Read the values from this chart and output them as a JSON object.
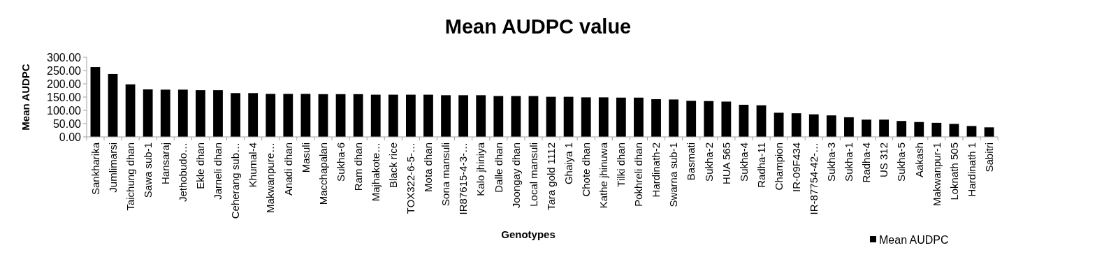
{
  "chart_data": {
    "type": "bar",
    "title": "Mean AUDPC value",
    "xlabel": "Genotypes",
    "ylabel": "Mean AUDPC",
    "categories": [
      "Sankharika",
      "Jumlimarsi",
      "Taichung dhan",
      "Sawa sub-1",
      "Hansaraj",
      "Jethobudo…",
      "Ekle dhan",
      "Jarneli dhan",
      "Ceherang sub…",
      "Khumal-4",
      "Makwanpure…",
      "Anadi dhan",
      "Masuli",
      "Macchapalan",
      "Sukha-6",
      "Ram dhan",
      "Majhakote…",
      "Black rice",
      "TOX322-6-5-…",
      "Mota dhan",
      "Sona mansuli",
      "IR87615-4-3-…",
      "Kalo jhiniya",
      "Dalle dhan",
      "Joongay dhan",
      "Local mansuli",
      "Tara gold 1112",
      "Ghaiya 1",
      "Chote dhan",
      "Kathe jhinuwa",
      "Tilki dhan",
      "Pokhreli dhan",
      "Hardinath-2",
      "Swarna sub-1",
      "Basmati",
      "Sukha-2",
      "HUA 565",
      "Sukha-4",
      "Radha-11",
      "Champion",
      "IR-09F434",
      "IR-87754-42-…",
      "Sukha-3",
      "Sukha-1",
      "Radha-4",
      "US 312",
      "Sukha-5",
      "Aakash",
      "Makwanpur-1",
      "Loknath 505",
      "Hardinath 1",
      "Sabitri"
    ],
    "series": [
      {
        "name": "Mean AUDPC",
        "color": "#000000",
        "values": [
          263,
          237,
          198,
          179,
          178,
          178,
          176,
          176,
          165,
          165,
          162,
          162,
          162,
          161,
          161,
          161,
          159,
          159,
          159,
          159,
          157,
          157,
          157,
          154,
          154,
          154,
          151,
          151,
          149,
          149,
          148,
          148,
          142,
          141,
          136,
          135,
          133,
          121,
          119,
          91,
          89,
          85,
          81,
          74,
          65,
          65,
          60,
          56,
          53,
          49,
          41,
          36
        ]
      }
    ],
    "ylim": [
      0,
      300
    ],
    "yticks": [
      {
        "value": 0,
        "label": "0.00"
      },
      {
        "value": 50,
        "label": "50.00"
      },
      {
        "value": 100,
        "label": "100.00"
      },
      {
        "value": 150,
        "label": "150.00"
      },
      {
        "value": 200,
        "label": "200.00"
      },
      {
        "value": 250,
        "label": "250.00"
      },
      {
        "value": 300,
        "label": "300.00"
      }
    ],
    "legend": "bottom right"
  }
}
